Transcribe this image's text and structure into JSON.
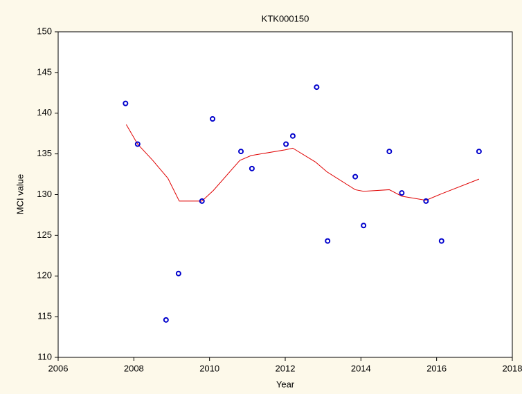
{
  "chart_data": {
    "type": "scatter",
    "title": "KTK000150",
    "xlabel": "Year",
    "ylabel": "MCI value",
    "x": [
      2007.78,
      2008.1,
      2008.85,
      2009.18,
      2009.8,
      2010.08,
      2010.83,
      2011.12,
      2012.02,
      2012.2,
      2012.83,
      2013.12,
      2013.85,
      2014.07,
      2014.75,
      2015.08,
      2015.72,
      2016.13,
      2017.12
    ],
    "values": [
      141.2,
      136.2,
      114.6,
      120.3,
      129.2,
      139.3,
      135.3,
      133.2,
      136.2,
      137.2,
      143.2,
      124.3,
      132.2,
      126.2,
      135.3,
      130.2,
      129.2,
      124.3,
      135.3
    ],
    "color": "#0000cc",
    "trend": {
      "x": [
        2007.8,
        2008.1,
        2008.5,
        2008.9,
        2009.2,
        2009.8,
        2010.1,
        2010.8,
        2011.1,
        2012.0,
        2012.2,
        2012.8,
        2013.1,
        2013.85,
        2014.07,
        2014.75,
        2015.08,
        2015.72,
        2016.13,
        2017.12
      ],
      "values": [
        138.6,
        136.2,
        134.2,
        132.0,
        129.2,
        129.2,
        130.5,
        134.2,
        134.8,
        135.5,
        135.7,
        134.0,
        132.8,
        130.6,
        130.4,
        130.6,
        129.8,
        129.3,
        130.1,
        131.9
      ],
      "color": "#e00000"
    },
    "xlim": [
      2006,
      2018
    ],
    "xticks": [
      2006,
      2008,
      2010,
      2012,
      2014,
      2016,
      2018
    ],
    "ylim": [
      110,
      150
    ],
    "yticks": [
      110,
      115,
      120,
      125,
      130,
      135,
      140,
      145,
      150
    ],
    "grid": false
  }
}
